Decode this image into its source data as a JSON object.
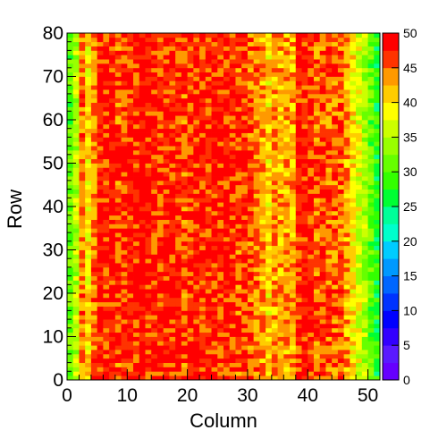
{
  "chart_data": {
    "type": "heatmap",
    "title": "",
    "xlabel": "Column",
    "ylabel": "Row",
    "xlim": [
      0,
      52
    ],
    "ylim": [
      0,
      80
    ],
    "x_ticks": [
      "0",
      "10",
      "20",
      "30",
      "40",
      "50"
    ],
    "y_ticks": [
      "0",
      "10",
      "20",
      "30",
      "40",
      "50",
      "60",
      "70",
      "80"
    ],
    "zlim": [
      0,
      50
    ],
    "color_bins": 20,
    "colorbar_ticks": [
      "0",
      "5",
      "10",
      "15",
      "20",
      "25",
      "30",
      "35",
      "40",
      "45",
      "50"
    ],
    "grid": false,
    "columns": 52,
    "rows": 80,
    "column_profile": [
      31,
      35,
      44,
      40,
      44,
      48,
      47,
      48,
      46,
      47,
      48,
      47,
      49,
      48,
      48,
      47,
      48,
      47,
      47,
      46,
      47,
      48,
      47,
      47,
      48,
      47,
      48,
      47,
      46,
      47,
      45,
      44,
      43,
      41,
      43,
      43,
      43,
      42,
      48,
      48,
      47,
      45,
      46,
      45,
      45,
      45,
      43,
      40,
      37,
      34,
      31,
      28
    ],
    "palette": [
      "#6600ff",
      "#5a1aff",
      "#3300ff",
      "#0000ff",
      "#0033ff",
      "#0066ff",
      "#0099ff",
      "#00ccff",
      "#00ffcc",
      "#00ff99",
      "#00ff33",
      "#33ff00",
      "#66ff00",
      "#99ff00",
      "#ccff00",
      "#ffff00",
      "#ffcc00",
      "#ff9900",
      "#ff3300",
      "#ff0000"
    ]
  }
}
